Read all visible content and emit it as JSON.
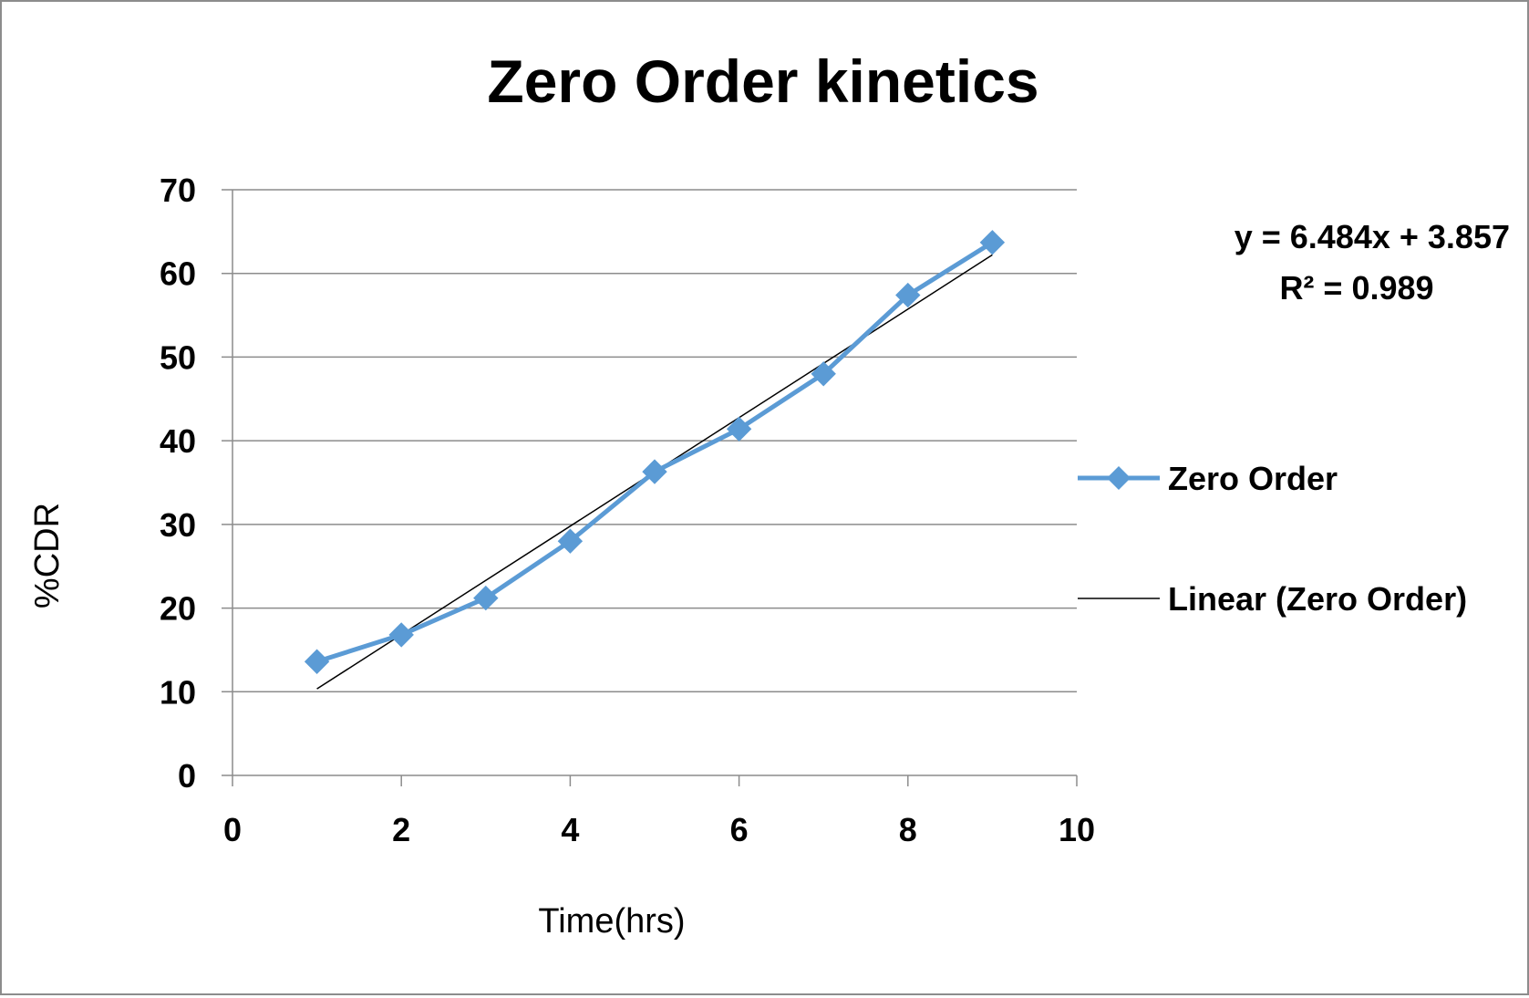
{
  "chart_data": {
    "type": "scatter",
    "title": "Zero Order kinetics",
    "xlabel": "Time(hrs)",
    "ylabel": "%CDR",
    "xlim": [
      0,
      10
    ],
    "ylim": [
      0,
      70
    ],
    "x_ticks": [
      0,
      2,
      4,
      6,
      8,
      10
    ],
    "y_ticks": [
      0,
      10,
      20,
      30,
      40,
      50,
      60,
      70
    ],
    "grid": "horizontal",
    "legend_position": "right",
    "series": [
      {
        "name": "Zero Order",
        "style": "line-with-diamond-markers",
        "color": "#5b9bd5",
        "points": [
          {
            "x": 1,
            "y": 13.6
          },
          {
            "x": 2,
            "y": 16.8
          },
          {
            "x": 3,
            "y": 21.2
          },
          {
            "x": 4,
            "y": 28.0
          },
          {
            "x": 5,
            "y": 36.3
          },
          {
            "x": 6,
            "y": 41.4
          },
          {
            "x": 7,
            "y": 48.0
          },
          {
            "x": 8,
            "y": 57.4
          },
          {
            "x": 9,
            "y": 63.7
          }
        ]
      }
    ],
    "trendline": {
      "name": "Linear (Zero Order)",
      "color": "#000000",
      "slope": 6.484,
      "intercept": 3.857,
      "x_range": [
        1,
        9
      ],
      "equation_text": "y = 6.484x + 3.857",
      "r2_text": "R² = 0.989"
    }
  }
}
